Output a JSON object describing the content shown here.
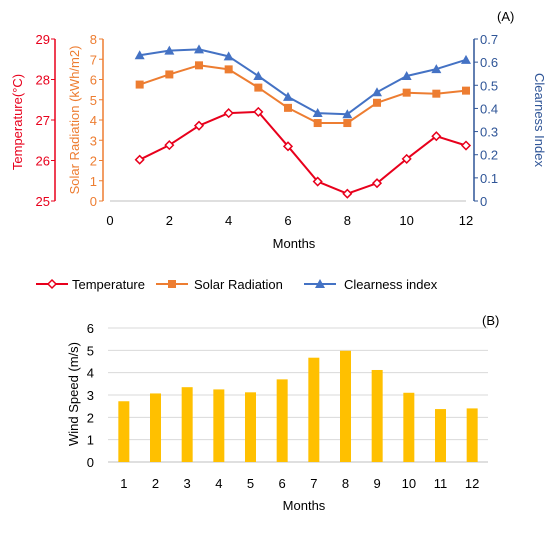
{
  "chart_data": [
    {
      "panel_label": "(A)",
      "type": "line",
      "x": [
        1,
        2,
        3,
        4,
        5,
        6,
        7,
        8,
        9,
        10,
        11,
        12
      ],
      "xlabel": "Months",
      "xlim": [
        0,
        12
      ],
      "xticks": [
        "0",
        "2",
        "4",
        "6",
        "8",
        "10",
        "12"
      ],
      "axes": {
        "temperature": {
          "label": "Temperature(°C)",
          "lim": [
            25,
            29
          ],
          "ticks": [
            "25",
            "26",
            "27",
            "28",
            "29"
          ],
          "color": "#e8001c"
        },
        "solar": {
          "label": "Solar Radiation (kWh/m2)",
          "lim": [
            0,
            8
          ],
          "ticks": [
            "0",
            "1",
            "2",
            "3",
            "4",
            "5",
            "6",
            "7",
            "8"
          ],
          "color": "#ed7d31"
        },
        "clearness": {
          "label": "Clearness Index",
          "lim": [
            0,
            0.7
          ],
          "ticks": [
            "0",
            "0.1",
            "0.2",
            "0.3",
            "0.4",
            "0.5",
            "0.6",
            "0.7"
          ],
          "color": "#2f5597"
        }
      },
      "series": [
        {
          "name": "Temperature",
          "axis": "temperature",
          "color": "#e8001c",
          "marker": "diamond-open",
          "values": [
            26.02,
            26.38,
            26.86,
            27.17,
            27.2,
            26.35,
            25.48,
            25.18,
            25.44,
            26.04,
            26.6,
            26.37
          ]
        },
        {
          "name": "Solar Radiation",
          "axis": "solar",
          "color": "#ed7d31",
          "marker": "square",
          "values": [
            5.75,
            6.25,
            6.7,
            6.5,
            5.6,
            4.6,
            3.85,
            3.85,
            4.85,
            5.35,
            5.3,
            5.45
          ]
        },
        {
          "name": "Clearness index",
          "axis": "clearness",
          "color": "#4472c4",
          "marker": "triangle",
          "values": [
            0.63,
            0.65,
            0.655,
            0.625,
            0.54,
            0.45,
            0.38,
            0.375,
            0.47,
            0.54,
            0.57,
            0.61
          ]
        }
      ],
      "legend_position": "bottom"
    },
    {
      "panel_label": "(B)",
      "type": "bar",
      "categories": [
        "1",
        "2",
        "3",
        "4",
        "5",
        "6",
        "7",
        "8",
        "9",
        "10",
        "11",
        "12"
      ],
      "values": [
        2.72,
        3.07,
        3.35,
        3.25,
        3.12,
        3.7,
        4.67,
        4.98,
        4.12,
        3.1,
        2.37,
        2.4
      ],
      "xlabel": "Months",
      "ylabel": "Wind Speed (m/s)",
      "ylim": [
        0,
        6
      ],
      "yticks": [
        "0",
        "1",
        "2",
        "3",
        "4",
        "5",
        "6"
      ],
      "bar_color": "#ffc000",
      "grid": true
    }
  ]
}
